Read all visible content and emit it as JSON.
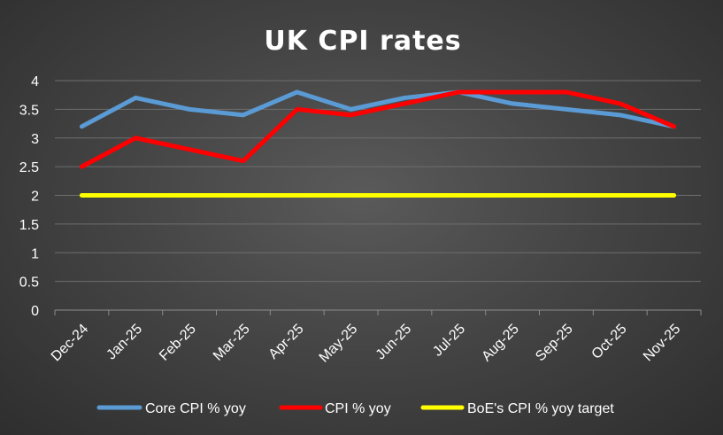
{
  "chart_data": {
    "type": "line",
    "title": "UK CPI rates",
    "xlabel": "",
    "ylabel": "",
    "categories": [
      "Dec-24",
      "Jan-25",
      "Feb-25",
      "Mar-25",
      "Apr-25",
      "May-25",
      "Jun-25",
      "Jul-25",
      "Aug-25",
      "Sep-25",
      "Oct-25",
      "Nov-25"
    ],
    "ylim": [
      0,
      4
    ],
    "yticks": [
      "0",
      "0.5",
      "1",
      "1.5",
      "2",
      "2.5",
      "3",
      "3.5",
      "4"
    ],
    "grid": true,
    "legend_position": "bottom",
    "series": [
      {
        "name": "Core CPI % yoy",
        "color": "#5b9bd5",
        "values": [
          3.2,
          3.7,
          3.5,
          3.4,
          3.8,
          3.5,
          3.7,
          3.8,
          3.6,
          3.5,
          3.4,
          3.2
        ]
      },
      {
        "name": "CPI % yoy",
        "color": "#ff0000",
        "values": [
          2.5,
          3.0,
          2.8,
          2.6,
          3.5,
          3.4,
          3.6,
          3.8,
          3.8,
          3.8,
          3.6,
          3.2
        ]
      },
      {
        "name": "BoE's CPI % yoy target",
        "color": "#ffff00",
        "values": [
          2,
          2,
          2,
          2,
          2,
          2,
          2,
          2,
          2,
          2,
          2,
          2
        ]
      }
    ]
  }
}
